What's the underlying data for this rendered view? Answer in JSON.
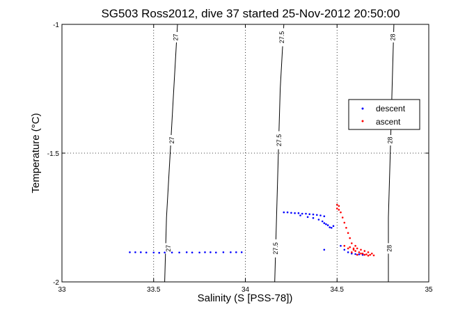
{
  "chart_data": {
    "type": "scatter",
    "title": "SG503 Ross2012, dive 37 started 25-Nov-2012 20:50:00",
    "xlabel": "Salinity (S [PSS-78])",
    "ylabel": "Temperature (°C)",
    "xlim": [
      33,
      35
    ],
    "ylim": [
      -2,
      -1
    ],
    "xticks": [
      "33",
      "33.5",
      "34",
      "34.5",
      "35"
    ],
    "yticks": [
      "-2",
      "-1.5",
      "-1"
    ],
    "xtick_values": [
      33,
      33.5,
      34,
      34.5,
      35
    ],
    "ytick_values": [
      -2,
      -1.5,
      -1
    ],
    "grid": "dotted",
    "legend_position": "right",
    "colors": {
      "descent": "#0000ff",
      "ascent": "#ff0000",
      "contour": "#000000"
    },
    "density_contours": [
      {
        "label": "27",
        "points": [
          [
            33.56,
            -2.0
          ],
          [
            33.57,
            -1.75
          ],
          [
            33.59,
            -1.5
          ],
          [
            33.61,
            -1.25
          ],
          [
            33.63,
            -1.0
          ]
        ]
      },
      {
        "label": "27.5",
        "points": [
          [
            34.16,
            -2.0
          ],
          [
            34.17,
            -1.75
          ],
          [
            34.18,
            -1.5
          ],
          [
            34.19,
            -1.25
          ],
          [
            34.21,
            -1.0
          ]
        ]
      },
      {
        "label": "28",
        "points": [
          [
            34.78,
            -2.0
          ],
          [
            34.78,
            -1.75
          ],
          [
            34.79,
            -1.5
          ],
          [
            34.8,
            -1.25
          ],
          [
            34.81,
            -1.0
          ]
        ]
      }
    ],
    "contour_label_positions": [
      {
        "label": "27",
        "x": 33.62,
        "y": -1.05
      },
      {
        "label": "27",
        "x": 33.6,
        "y": -1.45
      },
      {
        "label": "27",
        "x": 33.58,
        "y": -1.87
      },
      {
        "label": "27.5",
        "x": 34.2,
        "y": -1.05
      },
      {
        "label": "27.5",
        "x": 34.185,
        "y": -1.45
      },
      {
        "label": "27.5",
        "x": 34.165,
        "y": -1.87
      },
      {
        "label": "28",
        "x": 34.805,
        "y": -1.05
      },
      {
        "label": "28",
        "x": 34.79,
        "y": -1.45
      },
      {
        "label": "28",
        "x": 34.785,
        "y": -1.87
      }
    ],
    "series": [
      {
        "name": "descent",
        "points": [
          [
            33.37,
            -1.885
          ],
          [
            33.4,
            -1.885
          ],
          [
            33.43,
            -1.885
          ],
          [
            33.46,
            -1.886
          ],
          [
            33.5,
            -1.886
          ],
          [
            33.53,
            -1.887
          ],
          [
            33.56,
            -1.886
          ],
          [
            33.6,
            -1.886
          ],
          [
            33.64,
            -1.886
          ],
          [
            33.68,
            -1.885
          ],
          [
            33.71,
            -1.886
          ],
          [
            33.75,
            -1.886
          ],
          [
            33.78,
            -1.885
          ],
          [
            33.81,
            -1.885
          ],
          [
            33.84,
            -1.886
          ],
          [
            33.88,
            -1.885
          ],
          [
            33.92,
            -1.885
          ],
          [
            33.95,
            -1.885
          ],
          [
            33.98,
            -1.885
          ],
          [
            34.21,
            -1.73
          ],
          [
            34.23,
            -1.73
          ],
          [
            34.25,
            -1.732
          ],
          [
            34.27,
            -1.733
          ],
          [
            34.29,
            -1.733
          ],
          [
            34.31,
            -1.735
          ],
          [
            34.33,
            -1.735
          ],
          [
            34.35,
            -1.737
          ],
          [
            34.37,
            -1.738
          ],
          [
            34.39,
            -1.74
          ],
          [
            34.41,
            -1.742
          ],
          [
            34.43,
            -1.745
          ],
          [
            34.3,
            -1.742
          ],
          [
            34.34,
            -1.748
          ],
          [
            34.37,
            -1.752
          ],
          [
            34.4,
            -1.758
          ],
          [
            34.42,
            -1.765
          ],
          [
            34.43,
            -1.772
          ],
          [
            34.44,
            -1.776
          ],
          [
            34.45,
            -1.78
          ],
          [
            34.46,
            -1.788
          ],
          [
            34.47,
            -1.79
          ],
          [
            34.48,
            -1.783
          ],
          [
            34.43,
            -1.875
          ],
          [
            34.52,
            -1.86
          ],
          [
            34.54,
            -1.875
          ],
          [
            34.56,
            -1.885
          ],
          [
            34.58,
            -1.89
          ],
          [
            34.6,
            -1.892
          ],
          [
            34.62,
            -1.893
          ],
          [
            34.64,
            -1.895
          ]
        ]
      },
      {
        "name": "ascent",
        "points": [
          [
            34.5,
            -1.7
          ],
          [
            34.51,
            -1.705
          ],
          [
            34.5,
            -1.715
          ],
          [
            34.51,
            -1.72
          ],
          [
            34.52,
            -1.73
          ],
          [
            34.53,
            -1.75
          ],
          [
            34.54,
            -1.77
          ],
          [
            34.55,
            -1.79
          ],
          [
            34.56,
            -1.81
          ],
          [
            34.57,
            -1.83
          ],
          [
            34.58,
            -1.85
          ],
          [
            34.59,
            -1.87
          ],
          [
            34.6,
            -1.88
          ],
          [
            34.62,
            -1.885
          ],
          [
            34.64,
            -1.89
          ],
          [
            34.66,
            -1.893
          ],
          [
            34.68,
            -1.895
          ],
          [
            34.7,
            -1.897
          ],
          [
            34.6,
            -1.86
          ],
          [
            34.61,
            -1.87
          ],
          [
            34.63,
            -1.875
          ],
          [
            34.65,
            -1.88
          ],
          [
            34.67,
            -1.885
          ],
          [
            34.69,
            -1.89
          ],
          [
            34.61,
            -1.895
          ],
          [
            34.63,
            -1.89
          ],
          [
            34.65,
            -1.895
          ],
          [
            34.67,
            -1.898
          ],
          [
            34.58,
            -1.885
          ],
          [
            34.56,
            -1.87
          ],
          [
            34.54,
            -1.86
          ],
          [
            34.57,
            -1.865
          ],
          [
            34.59,
            -1.875
          ]
        ]
      }
    ]
  }
}
